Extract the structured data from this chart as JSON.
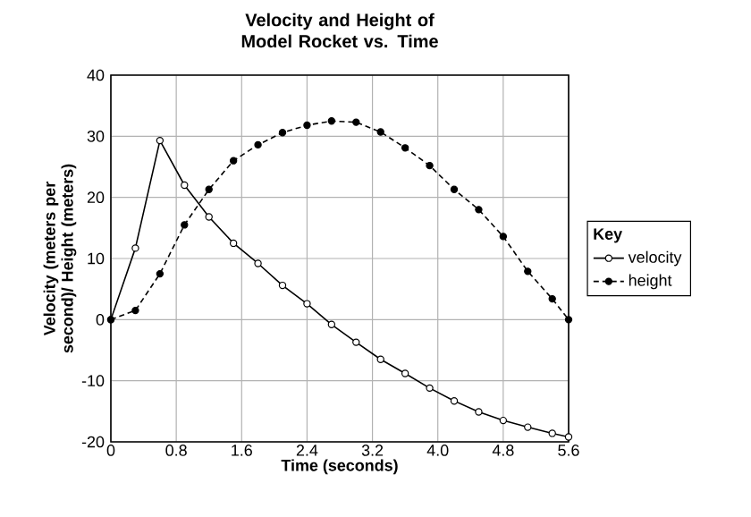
{
  "chart_data": {
    "type": "line",
    "title": "Velocity and Height of Model Rocket vs. Time",
    "xlabel": "Time (seconds)",
    "ylabel": "Velocity (meters per second)/ Height (meters)",
    "legend_title": "Key",
    "series": [
      {
        "name": "velocity",
        "color": "#000000",
        "line_style": "solid",
        "x": [
          0,
          0.3,
          0.6,
          0.9,
          1.2,
          1.5,
          1.8,
          2.1,
          2.4,
          2.7,
          3.0,
          3.3,
          3.6,
          3.9,
          4.2,
          4.5,
          4.8,
          5.1,
          5.4,
          5.6
        ],
        "values": [
          0,
          11.7,
          29.3,
          22,
          16.8,
          12.5,
          9.2,
          5.6,
          2.6,
          -0.8,
          -3.7,
          -6.5,
          -8.8,
          -11.2,
          -13.3,
          -15.1,
          -16.5,
          -17.6,
          -18.6,
          -19.2
        ]
      },
      {
        "name": "height",
        "color": "#000000",
        "line_style": "dashed",
        "x": [
          0,
          0.3,
          0.6,
          0.9,
          1.2,
          1.5,
          1.8,
          2.1,
          2.4,
          2.7,
          3.0,
          3.3,
          3.6,
          3.9,
          4.2,
          4.5,
          4.8,
          5.1,
          5.4,
          5.6
        ],
        "values": [
          0,
          1.5,
          7.5,
          15.5,
          21.3,
          26,
          28.6,
          30.6,
          31.8,
          32.5,
          32.3,
          30.7,
          28.1,
          25.2,
          21.3,
          18,
          13.6,
          7.9,
          3.4,
          0
        ]
      }
    ],
    "xlim": [
      0,
      5.6
    ],
    "xticks": [
      {
        "value": 0,
        "label": "0"
      },
      {
        "value": 0.8,
        "label": "0.8"
      },
      {
        "value": 1.6,
        "label": "1.6"
      },
      {
        "value": 2.4,
        "label": "2.4"
      },
      {
        "value": 3.2,
        "label": "3.2"
      },
      {
        "value": 4.0,
        "label": "4.0"
      },
      {
        "value": 4.8,
        "label": "4.8"
      },
      {
        "value": 5.6,
        "label": "5.6"
      }
    ],
    "ylim": [
      -20,
      40
    ],
    "yticks": [
      -20,
      -10,
      0,
      10,
      20,
      30,
      40
    ],
    "grid": true,
    "legend": "right",
    "marker": "circle"
  }
}
